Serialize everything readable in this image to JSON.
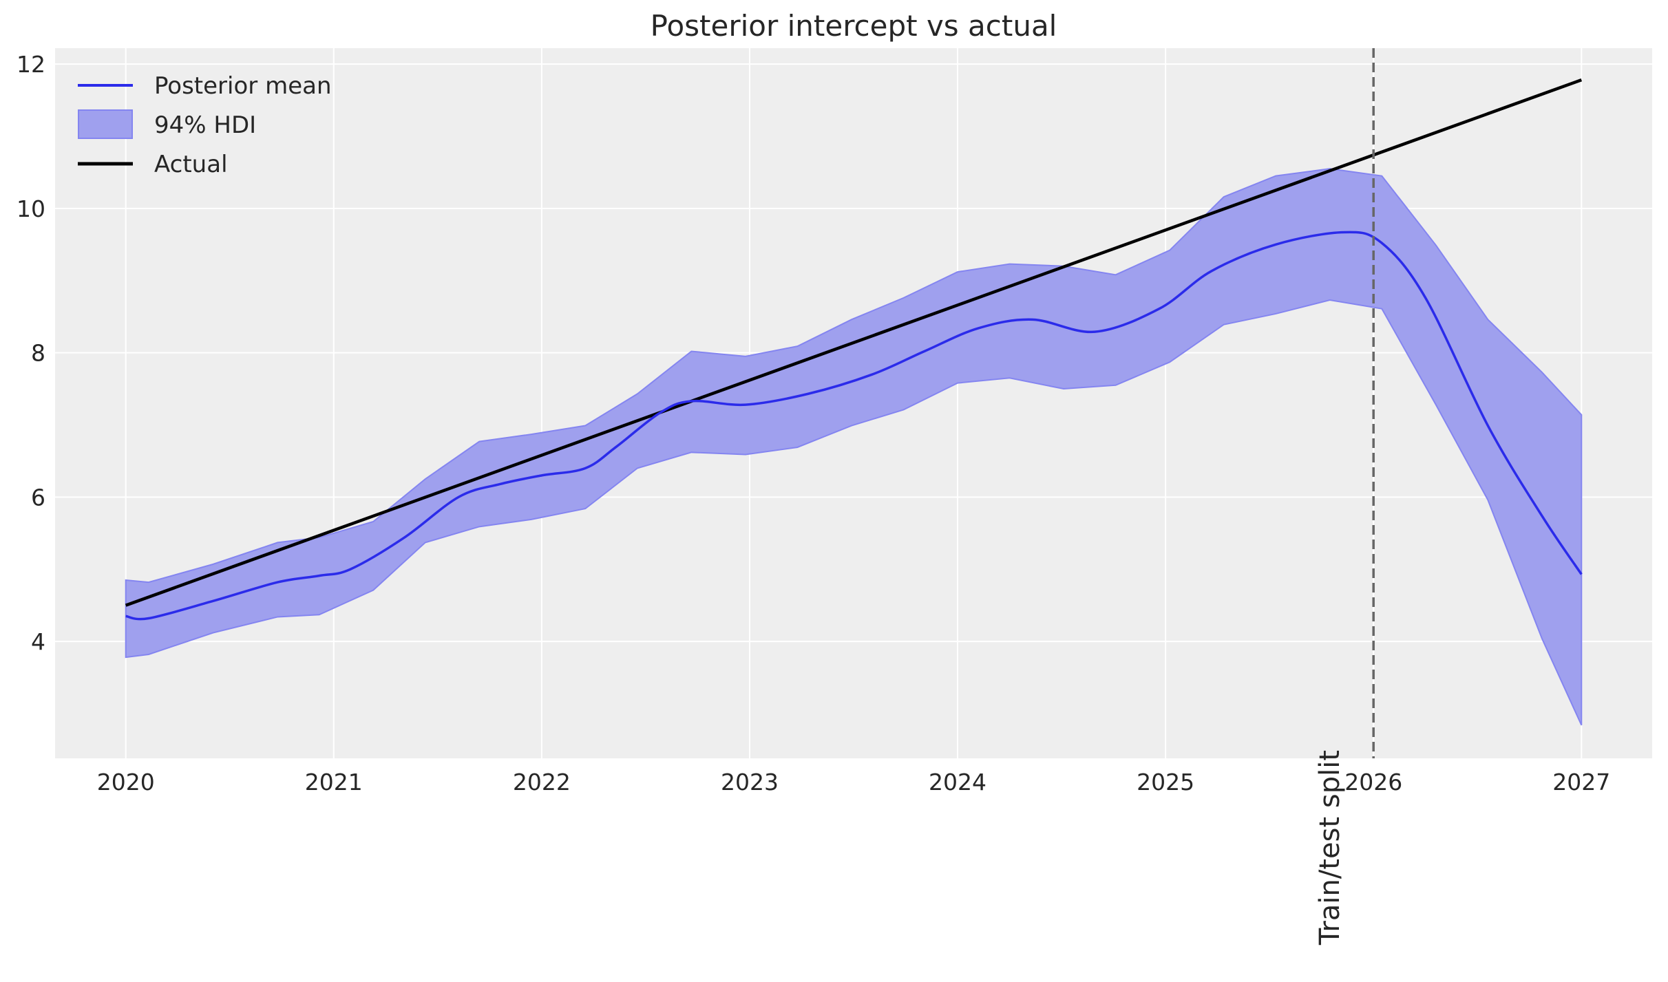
{
  "chart_data": {
    "type": "line",
    "title": "Posterior intercept vs actual",
    "xlabel": "",
    "ylabel": "",
    "xlim": [
      2019.66,
      2027.34
    ],
    "ylim": [
      2.38,
      12.22
    ],
    "x_ticks": [
      "2020",
      "2021",
      "2022",
      "2023",
      "2024",
      "2025",
      "2026",
      "2027"
    ],
    "x_tick_values": [
      2020,
      2021,
      2022,
      2023,
      2024,
      2025,
      2026,
      2027
    ],
    "y_ticks": [
      "4",
      "6",
      "8",
      "10",
      "12"
    ],
    "y_tick_values": [
      4,
      6,
      8,
      10,
      12
    ],
    "grid": true,
    "legend_placement": "top-left",
    "colors": {
      "background": "#eeeeee",
      "mean": "#2b2bea",
      "hdi": "#9fa0ee",
      "hdi_edge": "#8485f0",
      "actual": "#000000",
      "split": "#666666"
    },
    "series": [
      {
        "name": "Posterior mean",
        "x": [
          2020.0,
          2020.11,
          2020.42,
          2020.73,
          2020.93,
          2021.08,
          2021.34,
          2021.6,
          2021.8,
          2022.0,
          2022.21,
          2022.36,
          2022.57,
          2022.72,
          2022.98,
          2023.28,
          2023.59,
          2023.84,
          2024.1,
          2024.36,
          2024.66,
          2024.97,
          2025.22,
          2025.53,
          2025.86,
          2026.04,
          2026.25,
          2026.55,
          2026.81,
          2027.0
        ],
        "y": [
          4.35,
          4.32,
          4.56,
          4.82,
          4.91,
          5.0,
          5.44,
          6.0,
          6.18,
          6.3,
          6.4,
          6.7,
          7.17,
          7.33,
          7.28,
          7.43,
          7.7,
          8.02,
          8.34,
          8.46,
          8.29,
          8.61,
          9.13,
          9.5,
          9.67,
          9.52,
          8.76,
          6.99,
          5.74,
          4.93
        ]
      },
      {
        "name": "94% HDI",
        "x": [
          2020.0,
          2020.11,
          2020.42,
          2020.73,
          2020.93,
          2021.19,
          2021.44,
          2021.7,
          2021.95,
          2022.21,
          2022.46,
          2022.72,
          2022.98,
          2023.23,
          2023.49,
          2023.74,
          2024.0,
          2024.25,
          2024.51,
          2024.76,
          2025.02,
          2025.28,
          2025.53,
          2025.79,
          2026.04,
          2026.3,
          2026.55,
          2026.81,
          2027.0
        ],
        "upper": [
          4.85,
          4.82,
          5.07,
          5.37,
          5.44,
          5.66,
          6.25,
          6.77,
          6.87,
          6.99,
          7.43,
          8.02,
          7.95,
          8.09,
          8.46,
          8.76,
          9.12,
          9.23,
          9.2,
          9.08,
          9.42,
          10.16,
          10.45,
          10.55,
          10.45,
          9.49,
          8.46,
          7.73,
          7.14
        ],
        "lower": [
          3.78,
          3.82,
          4.12,
          4.34,
          4.37,
          4.71,
          5.37,
          5.59,
          5.69,
          5.84,
          6.4,
          6.62,
          6.59,
          6.69,
          6.99,
          7.21,
          7.58,
          7.65,
          7.5,
          7.55,
          7.87,
          8.39,
          8.54,
          8.73,
          8.61,
          7.28,
          5.96,
          4.04,
          2.84
        ]
      },
      {
        "name": "Actual",
        "x": [
          2020.0,
          2027.0
        ],
        "y": [
          4.5,
          11.78
        ]
      }
    ],
    "annotations": [
      {
        "type": "vline",
        "x": 2026.0,
        "style": "dashed",
        "label": "Train/test split"
      }
    ]
  }
}
